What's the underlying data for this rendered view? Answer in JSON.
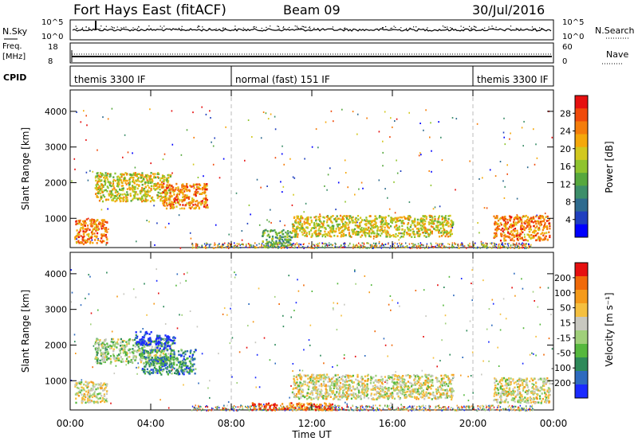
{
  "header": {
    "station": "Fort Hays East (fitACF)",
    "beam": "Beam 09",
    "date": "30/Jul/2016"
  },
  "noise_panel": {
    "left_label": "N.Sky",
    "right_label": "N.Search",
    "left_ticks": [
      "10^5",
      "10^0"
    ],
    "right_ticks": [
      "10^5",
      "10^0"
    ]
  },
  "freq_panel": {
    "left_label_1": "Freq.",
    "left_label_2": "[MHz]",
    "right_label": "Nave",
    "left_ticks": [
      "18",
      "8"
    ],
    "right_ticks": [
      "60",
      "0"
    ]
  },
  "cpid_panel": {
    "label": "CPID",
    "modes": [
      {
        "text": "themis 3300 IF",
        "start_hour": 0,
        "end_hour": 8
      },
      {
        "text": "normal (fast) 151 IF",
        "start_hour": 8,
        "end_hour": 20
      },
      {
        "text": "themis 3300 IF",
        "start_hour": 20,
        "end_hour": 24
      }
    ]
  },
  "x_axis": {
    "label": "Time UT",
    "ticks": [
      "00:00",
      "04:00",
      "08:00",
      "12:00",
      "16:00",
      "20:00",
      "00:00"
    ],
    "range_hours": [
      0,
      24
    ]
  },
  "power_panel": {
    "ylabel": "Slant Range [km]",
    "yticks": [
      "4000",
      "3000",
      "2000",
      "1000"
    ],
    "colorbar_label": "Power [dB]",
    "colorbar_ticks": [
      "28",
      "24",
      "20",
      "16",
      "12",
      "8",
      "4"
    ],
    "colors": [
      "#0000ff",
      "#1f3fbf",
      "#2e6b8f",
      "#3d8f6a",
      "#56a83e",
      "#8fc42e",
      "#d2c81e",
      "#f5a80a",
      "#f57d0a",
      "#f04a0a",
      "#e61010"
    ]
  },
  "velocity_panel": {
    "ylabel": "Slant Range [km]",
    "yticks": [
      "4000",
      "3000",
      "2000",
      "1000"
    ],
    "colorbar_label": "Velocity [m s⁻¹]",
    "colorbar_ticks": [
      "200",
      "100",
      "50",
      "15",
      "-15",
      "-50",
      "-100",
      "-200"
    ],
    "colors": [
      "#1a2aff",
      "#2e6bbf",
      "#2e8a5a",
      "#56b83e",
      "#a0d07a",
      "#c8c8c0",
      "#f5c040",
      "#f59a1a",
      "#f06a0a",
      "#e61010"
    ]
  },
  "chart_data": {
    "type": "heatmap",
    "x_range_hours": [
      0,
      24
    ],
    "y_range_km": [
      180,
      4600
    ],
    "power_patches": [
      {
        "t0": 0.2,
        "t1": 1.8,
        "r0": 300,
        "r1": 1000,
        "level": 8
      },
      {
        "t0": 1.2,
        "t1": 5.0,
        "r0": 1500,
        "r1": 2300,
        "level": 6
      },
      {
        "t0": 4.5,
        "t1": 6.8,
        "r0": 1300,
        "r1": 2000,
        "level": 8
      },
      {
        "t0": 11.0,
        "t1": 19.0,
        "r0": 500,
        "r1": 1100,
        "level": 6
      },
      {
        "t0": 21.0,
        "t1": 23.8,
        "r0": 400,
        "r1": 1100,
        "level": 8
      },
      {
        "t0": 9.5,
        "t1": 11.0,
        "r0": 200,
        "r1": 700,
        "level": 4
      }
    ],
    "velocity_patches": [
      {
        "t0": 0.2,
        "t1": 1.8,
        "r0": 400,
        "r1": 1000,
        "level": 5
      },
      {
        "t0": 1.2,
        "t1": 5.0,
        "r0": 1500,
        "r1": 2200,
        "level": 4
      },
      {
        "t0": 3.2,
        "t1": 4.0,
        "r0": 2000,
        "r1": 2400,
        "level": 0
      },
      {
        "t0": 4.2,
        "t1": 5.2,
        "r0": 1900,
        "r1": 2300,
        "level": 0
      },
      {
        "t0": 3.5,
        "t1": 6.2,
        "r0": 1200,
        "r1": 1900,
        "level": 2
      },
      {
        "t0": 11.0,
        "t1": 19.0,
        "r0": 500,
        "r1": 1200,
        "level": 5
      },
      {
        "t0": 21.0,
        "t1": 23.8,
        "r0": 400,
        "r1": 1100,
        "level": 5
      },
      {
        "t0": 9.0,
        "t1": 13.0,
        "r0": 200,
        "r1": 400,
        "level": 8
      }
    ]
  }
}
